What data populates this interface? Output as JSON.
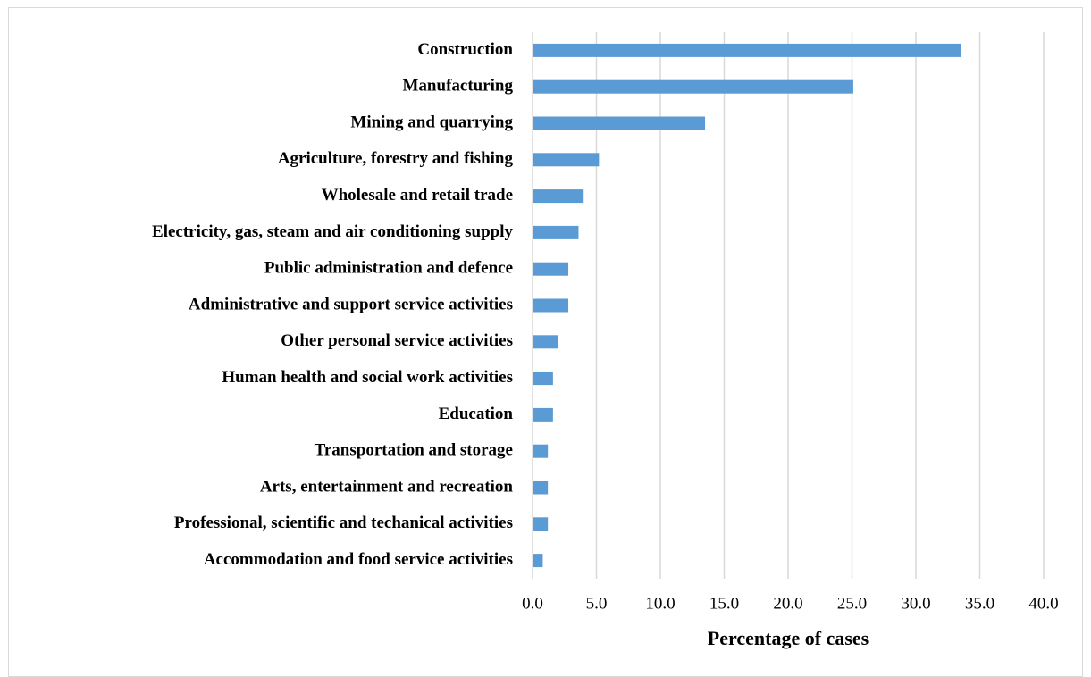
{
  "chart_data": {
    "type": "barh",
    "x_label": "Percentage of cases",
    "categories": [
      "Construction",
      "Manufacturing",
      "Mining and quarrying",
      "Agriculture, forestry and fishing",
      "Wholesale and retail trade",
      "Electricity, gas, steam and air conditioning supply",
      "Public administration and defence",
      "Administrative and support service activities",
      "Other personal service activities",
      "Human health and social work activities",
      "Education",
      "Transportation and storage",
      "Arts, entertainment and recreation",
      "Professional, scientific and techanical activities",
      "Accommodation and food service activities"
    ],
    "values": [
      33.5,
      25.1,
      13.5,
      5.2,
      4.0,
      3.6,
      2.8,
      2.8,
      2.0,
      1.6,
      1.6,
      1.2,
      1.2,
      1.2,
      0.8
    ],
    "color": "#5b9bd5",
    "xlim": [
      0,
      40
    ],
    "xticks": [
      {
        "value": 0,
        "label": "0.0"
      },
      {
        "value": 5,
        "label": "5.0"
      },
      {
        "value": 10,
        "label": "10.0"
      },
      {
        "value": 15,
        "label": "15.0"
      },
      {
        "value": 20,
        "label": "20.0"
      },
      {
        "value": 25,
        "label": "25.0"
      },
      {
        "value": 30,
        "label": "30.0"
      },
      {
        "value": 35,
        "label": "35.0"
      },
      {
        "value": 40,
        "label": "40.0"
      }
    ],
    "grid": true
  }
}
